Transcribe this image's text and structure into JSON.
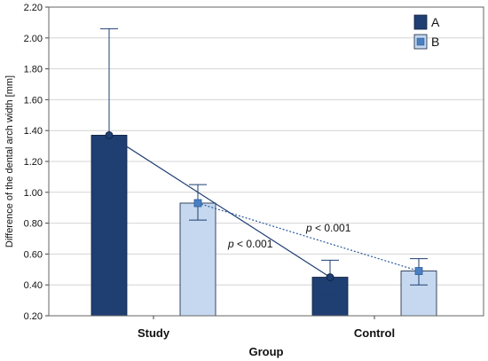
{
  "chart_data": {
    "type": "bar",
    "categories": [
      "Study",
      "Control"
    ],
    "xlabel": "Group",
    "ylabel": "Difference of the dental arch width [mm]",
    "ylim": [
      0.2,
      2.2
    ],
    "yticks": [
      "0.20",
      "0.40",
      "0.60",
      "0.80",
      "1.00",
      "1.20",
      "1.40",
      "1.60",
      "1.80",
      "2.00",
      "2.20"
    ],
    "grid": true,
    "legend_position": "top-right",
    "series": [
      {
        "name": "A",
        "color": "#1f3f73",
        "values": [
          1.37,
          0.45
        ],
        "error_low": [
          0.69,
          0.33
        ],
        "error_high": [
          2.06,
          0.56
        ],
        "line_style": "solid",
        "marker": "circle"
      },
      {
        "name": "B",
        "color": "#c6d8ef",
        "values": [
          0.93,
          0.49
        ],
        "error_low": [
          0.82,
          0.4
        ],
        "error_high": [
          1.05,
          0.57
        ],
        "line_style": "dotted",
        "marker": "square",
        "marker_color": "#4a7fc1"
      }
    ],
    "annotations": [
      {
        "text_italic": "p",
        "text": " < 0.001",
        "near": "series A trend line"
      },
      {
        "text_italic": "p",
        "text": " < 0.001",
        "near": "series B trend line"
      }
    ]
  }
}
